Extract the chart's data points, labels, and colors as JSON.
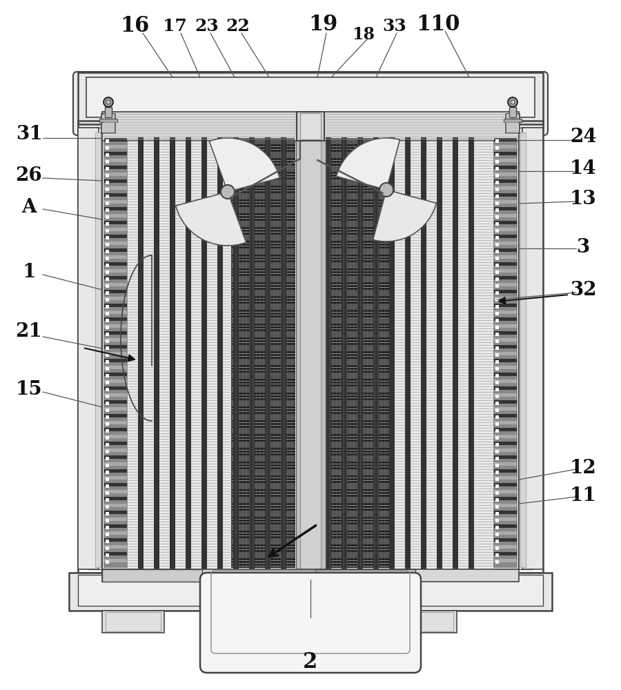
{
  "bg_color": "#ffffff",
  "lc": "#444444",
  "dc": "#111111",
  "figsize": [
    9.0,
    10.0
  ],
  "dpi": 100,
  "labels_top": [
    [
      "16",
      195,
      38,
      22
    ],
    [
      "17",
      253,
      38,
      18
    ],
    [
      "23",
      300,
      38,
      18
    ],
    [
      "22",
      345,
      38,
      18
    ],
    [
      "19",
      468,
      35,
      22
    ],
    [
      "18",
      527,
      50,
      17
    ],
    [
      "33",
      572,
      38,
      18
    ],
    [
      "110",
      635,
      35,
      22
    ]
  ],
  "labels_left": [
    [
      "31",
      42,
      195,
      20
    ],
    [
      "26",
      42,
      255,
      20
    ],
    [
      "A",
      42,
      300,
      20
    ],
    [
      "1",
      42,
      395,
      20
    ],
    [
      "21",
      42,
      480,
      20
    ],
    [
      "15",
      42,
      565,
      20
    ]
  ],
  "labels_right": [
    [
      "24",
      845,
      198,
      20
    ],
    [
      "14",
      845,
      245,
      20
    ],
    [
      "13",
      845,
      288,
      20
    ],
    [
      "3",
      845,
      358,
      20
    ],
    [
      "32",
      845,
      420,
      20
    ],
    [
      "12",
      845,
      678,
      20
    ],
    [
      "11",
      845,
      718,
      20
    ]
  ],
  "label_bottom": [
    "2",
    450,
    960,
    22
  ]
}
